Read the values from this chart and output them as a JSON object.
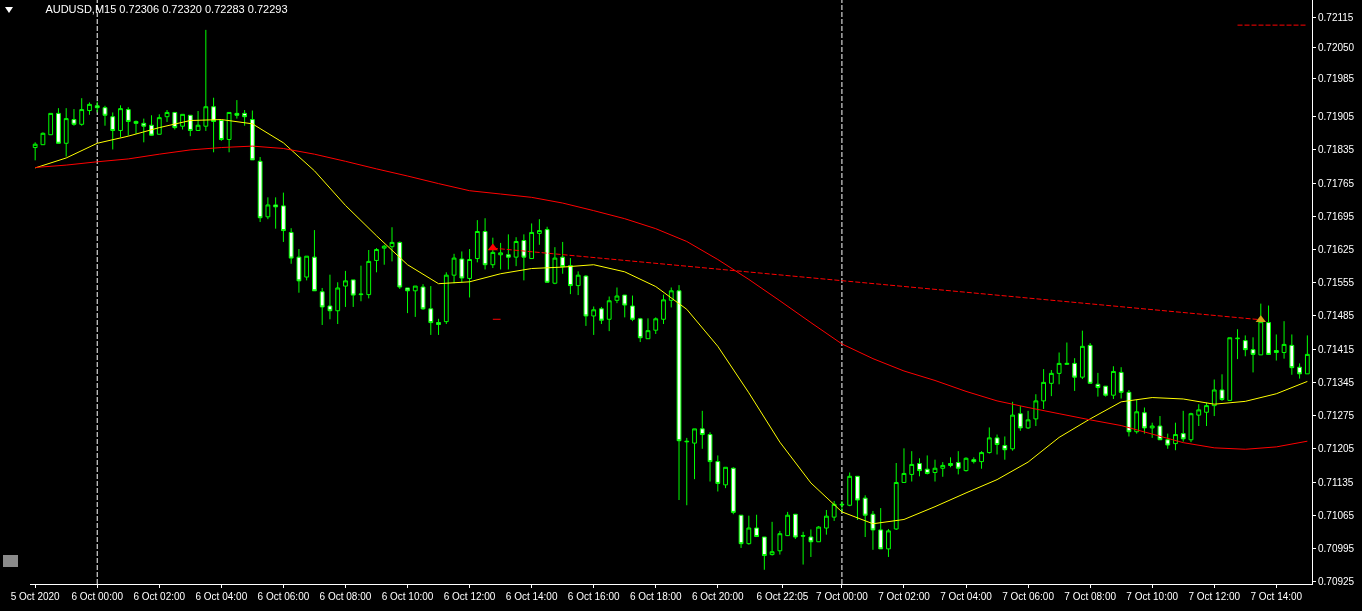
{
  "chart_data": {
    "type": "candlestick",
    "title": "AUDUSD,M15 0.72306 0.72320 0.72283 0.72293",
    "x": [
      "2020-10-05T22:00",
      "2020-10-05T22:15",
      "2020-10-05T22:30",
      "2020-10-05T22:45",
      "2020-10-05T23:00",
      "2020-10-05T23:15",
      "2020-10-05T23:30",
      "2020-10-05T23:45",
      "2020-10-06T00:00",
      "2020-10-06T00:15",
      "2020-10-06T00:30",
      "2020-10-06T00:45",
      "2020-10-06T01:00",
      "2020-10-06T01:15",
      "2020-10-06T01:30",
      "2020-10-06T01:45",
      "2020-10-06T02:00",
      "2020-10-06T02:15",
      "2020-10-06T02:30",
      "2020-10-06T02:45",
      "2020-10-06T03:00",
      "2020-10-06T03:15",
      "2020-10-06T03:30",
      "2020-10-06T03:45",
      "2020-10-06T04:00",
      "2020-10-06T04:15",
      "2020-10-06T04:30",
      "2020-10-06T04:45",
      "2020-10-06T05:00",
      "2020-10-06T05:15",
      "2020-10-06T05:30",
      "2020-10-06T05:45",
      "2020-10-06T06:00",
      "2020-10-06T06:15",
      "2020-10-06T06:30",
      "2020-10-06T06:45",
      "2020-10-06T07:00",
      "2020-10-06T07:15",
      "2020-10-06T07:30",
      "2020-10-06T07:45",
      "2020-10-06T08:00",
      "2020-10-06T08:15",
      "2020-10-06T08:30",
      "2020-10-06T08:45",
      "2020-10-06T09:00",
      "2020-10-06T09:15",
      "2020-10-06T09:30",
      "2020-10-06T09:45",
      "2020-10-06T10:00",
      "2020-10-06T10:15",
      "2020-10-06T10:30",
      "2020-10-06T10:45",
      "2020-10-06T11:00",
      "2020-10-06T11:15",
      "2020-10-06T11:30",
      "2020-10-06T11:45",
      "2020-10-06T12:00",
      "2020-10-06T12:15",
      "2020-10-06T12:30",
      "2020-10-06T12:45",
      "2020-10-06T13:00",
      "2020-10-06T13:15",
      "2020-10-06T13:30",
      "2020-10-06T13:45",
      "2020-10-06T14:00",
      "2020-10-06T14:15",
      "2020-10-06T14:30",
      "2020-10-06T14:45",
      "2020-10-06T15:00",
      "2020-10-06T15:15",
      "2020-10-06T15:30",
      "2020-10-06T15:45",
      "2020-10-06T16:00",
      "2020-10-06T16:15",
      "2020-10-06T16:30",
      "2020-10-06T16:45",
      "2020-10-06T17:00",
      "2020-10-06T17:15",
      "2020-10-06T17:30",
      "2020-10-06T17:45",
      "2020-10-06T18:00",
      "2020-10-06T18:15",
      "2020-10-06T18:30",
      "2020-10-06T18:45",
      "2020-10-06T19:00",
      "2020-10-06T19:15",
      "2020-10-06T19:30",
      "2020-10-06T19:45",
      "2020-10-06T20:00",
      "2020-10-06T20:15",
      "2020-10-06T20:30",
      "2020-10-06T20:45",
      "2020-10-06T21:00",
      "2020-10-06T21:15",
      "2020-10-06T21:30",
      "2020-10-06T21:45",
      "2020-10-06T22:00",
      "2020-10-06T22:15",
      "2020-10-06T22:30",
      "2020-10-06T22:45",
      "2020-10-06T23:00",
      "2020-10-06T23:15",
      "2020-10-06T23:30",
      "2020-10-06T23:45",
      "2020-10-07T00:00",
      "2020-10-07T00:15",
      "2020-10-07T00:30",
      "2020-10-07T00:45",
      "2020-10-07T01:00",
      "2020-10-07T01:15",
      "2020-10-07T01:30",
      "2020-10-07T01:45",
      "2020-10-07T02:00",
      "2020-10-07T02:15",
      "2020-10-07T02:30",
      "2020-10-07T02:45",
      "2020-10-07T03:00",
      "2020-10-07T03:15",
      "2020-10-07T03:30",
      "2020-10-07T03:45",
      "2020-10-07T04:00",
      "2020-10-07T04:15",
      "2020-10-07T04:30",
      "2020-10-07T04:45",
      "2020-10-07T05:00",
      "2020-10-07T05:15",
      "2020-10-07T05:30",
      "2020-10-07T05:45",
      "2020-10-07T06:00",
      "2020-10-07T06:15",
      "2020-10-07T06:30",
      "2020-10-07T06:45",
      "2020-10-07T07:00",
      "2020-10-07T07:15",
      "2020-10-07T07:30",
      "2020-10-07T07:45",
      "2020-10-07T08:00",
      "2020-10-07T08:15",
      "2020-10-07T08:30",
      "2020-10-07T08:45",
      "2020-10-07T09:00",
      "2020-10-07T09:15",
      "2020-10-07T09:30",
      "2020-10-07T09:45",
      "2020-10-07T10:00",
      "2020-10-07T10:15",
      "2020-10-07T10:30",
      "2020-10-07T10:45",
      "2020-10-07T11:00",
      "2020-10-07T11:15",
      "2020-10-07T11:30",
      "2020-10-07T11:45",
      "2020-10-07T12:00",
      "2020-10-07T12:15",
      "2020-10-07T12:30",
      "2020-10-07T12:45",
      "2020-10-07T13:00",
      "2020-10-07T13:15",
      "2020-10-07T13:30",
      "2020-10-07T13:45",
      "2020-10-07T14:00",
      "2020-10-07T14:15",
      "2020-10-07T14:30",
      "2020-10-07T14:45",
      "2020-10-07T15:00"
    ],
    "ohlc": [
      [
        0.7184,
        0.71851,
        0.71813,
        0.71847
      ],
      [
        0.71846,
        0.71872,
        0.71846,
        0.7187
      ],
      [
        0.71867,
        0.71912,
        0.71867,
        0.71912
      ],
      [
        0.71912,
        0.71923,
        0.71849,
        0.71849
      ],
      [
        0.71849,
        0.71923,
        0.71821,
        0.71901
      ],
      [
        0.71899,
        0.71921,
        0.71886,
        0.71889
      ],
      [
        0.71889,
        0.71944,
        0.71886,
        0.7192
      ],
      [
        0.71918,
        0.71935,
        0.71909,
        0.71931
      ],
      [
        0.71928,
        0.71937,
        0.71914,
        0.71924
      ],
      [
        0.71924,
        0.71928,
        0.71886,
        0.71908
      ],
      [
        0.71905,
        0.71914,
        0.71836,
        0.71876
      ],
      [
        0.71876,
        0.71929,
        0.71862,
        0.71922
      ],
      [
        0.7192,
        0.71925,
        0.71865,
        0.71895
      ],
      [
        0.71895,
        0.71897,
        0.71869,
        0.71891
      ],
      [
        0.71891,
        0.71901,
        0.71851,
        0.71885
      ],
      [
        0.71887,
        0.71908,
        0.71865,
        0.71866
      ],
      [
        0.71868,
        0.7191,
        0.71868,
        0.71903
      ],
      [
        0.71905,
        0.71919,
        0.71894,
        0.71914
      ],
      [
        0.71914,
        0.71914,
        0.71878,
        0.71882
      ],
      [
        0.71885,
        0.7191,
        0.71878,
        0.7191
      ],
      [
        0.71908,
        0.71908,
        0.71864,
        0.71876
      ],
      [
        0.71876,
        0.71917,
        0.71876,
        0.71887
      ],
      [
        0.71885,
        0.72088,
        0.71875,
        0.71926
      ],
      [
        0.71926,
        0.71945,
        0.7183,
        0.71895
      ],
      [
        0.71897,
        0.71897,
        0.71854,
        0.71857
      ],
      [
        0.71857,
        0.71914,
        0.7183,
        0.71914
      ],
      [
        0.71912,
        0.7194,
        0.71901,
        0.71908
      ],
      [
        0.71912,
        0.71919,
        0.71886,
        0.71905
      ],
      [
        0.71899,
        0.71918,
        0.71814,
        0.71814
      ],
      [
        0.71811,
        0.7182,
        0.71683,
        0.71692
      ],
      [
        0.71694,
        0.71735,
        0.71689,
        0.71719
      ],
      [
        0.71719,
        0.71735,
        0.71669,
        0.71715
      ],
      [
        0.71717,
        0.71745,
        0.71641,
        0.71665
      ],
      [
        0.71661,
        0.7167,
        0.71595,
        0.71607
      ],
      [
        0.71609,
        0.71626,
        0.71534,
        0.71559
      ],
      [
        0.71567,
        0.71611,
        0.7156,
        0.71611
      ],
      [
        0.71609,
        0.71666,
        0.71538,
        0.71538
      ],
      [
        0.71536,
        0.71544,
        0.71466,
        0.71504
      ],
      [
        0.71506,
        0.71572,
        0.71478,
        0.71496
      ],
      [
        0.71496,
        0.71556,
        0.71468,
        0.71544
      ],
      [
        0.71548,
        0.7158,
        0.71504,
        0.71559
      ],
      [
        0.71561,
        0.71561,
        0.71504,
        0.71529
      ],
      [
        0.7153,
        0.71591,
        0.71516,
        0.71531
      ],
      [
        0.7153,
        0.71624,
        0.71522,
        0.716
      ],
      [
        0.71602,
        0.71628,
        0.71577,
        0.71625
      ],
      [
        0.71628,
        0.71635,
        0.71593,
        0.71632
      ],
      [
        0.71631,
        0.71672,
        0.716,
        0.7164
      ],
      [
        0.7164,
        0.71642,
        0.71542,
        0.71546
      ],
      [
        0.71544,
        0.71544,
        0.71491,
        0.71538
      ],
      [
        0.71538,
        0.71548,
        0.71483,
        0.71548
      ],
      [
        0.71546,
        0.71552,
        0.71498,
        0.715
      ],
      [
        0.715,
        0.71548,
        0.71445,
        0.71471
      ],
      [
        0.71471,
        0.71479,
        0.71445,
        0.71467
      ],
      [
        0.71473,
        0.71577,
        0.71468,
        0.71571
      ],
      [
        0.71571,
        0.71616,
        0.71554,
        0.71607
      ],
      [
        0.71605,
        0.71621,
        0.71556,
        0.71565
      ],
      [
        0.71564,
        0.71626,
        0.71524,
        0.71604
      ],
      [
        0.71606,
        0.71687,
        0.71598,
        0.71663
      ],
      [
        0.71663,
        0.71691,
        0.71583,
        0.71593
      ],
      [
        0.71593,
        0.7165,
        0.71586,
        0.71619
      ],
      [
        0.71614,
        0.71639,
        0.71583,
        0.71618
      ],
      [
        0.71614,
        0.71657,
        0.71583,
        0.71609
      ],
      [
        0.71609,
        0.71651,
        0.7159,
        0.71642
      ],
      [
        0.71644,
        0.71657,
        0.7156,
        0.71609
      ],
      [
        0.71606,
        0.7168,
        0.71606,
        0.71661
      ],
      [
        0.71659,
        0.71689,
        0.71635,
        0.71665
      ],
      [
        0.71667,
        0.71673,
        0.71556,
        0.71556
      ],
      [
        0.71554,
        0.7163,
        0.71552,
        0.71607
      ],
      [
        0.71609,
        0.71641,
        0.71574,
        0.71589
      ],
      [
        0.71591,
        0.71607,
        0.71531,
        0.71549
      ],
      [
        0.71549,
        0.71579,
        0.71529,
        0.71571
      ],
      [
        0.71569,
        0.71571,
        0.71464,
        0.71485
      ],
      [
        0.71485,
        0.71505,
        0.71445,
        0.71498
      ],
      [
        0.715,
        0.71504,
        0.71468,
        0.71476
      ],
      [
        0.71478,
        0.71526,
        0.71453,
        0.71517
      ],
      [
        0.71518,
        0.71545,
        0.71512,
        0.71527
      ],
      [
        0.71529,
        0.71529,
        0.71482,
        0.71508
      ],
      [
        0.71506,
        0.71528,
        0.71474,
        0.71478
      ],
      [
        0.71479,
        0.71481,
        0.7143,
        0.71439
      ],
      [
        0.71437,
        0.7148,
        0.71437,
        0.71454
      ],
      [
        0.71455,
        0.71482,
        0.71447,
        0.71479
      ],
      [
        0.71478,
        0.7153,
        0.71468,
        0.71519
      ],
      [
        0.71518,
        0.71545,
        0.71503,
        0.71538
      ],
      [
        0.71538,
        0.7155,
        0.71097,
        0.71222
      ],
      [
        0.71221,
        0.71228,
        0.71086,
        0.7122
      ],
      [
        0.71217,
        0.71247,
        0.71141,
        0.71247
      ],
      [
        0.71247,
        0.71285,
        0.71205,
        0.71235
      ],
      [
        0.71235,
        0.7124,
        0.71136,
        0.71178
      ],
      [
        0.71178,
        0.71191,
        0.71115,
        0.71132
      ],
      [
        0.71129,
        0.71166,
        0.71122,
        0.71166
      ],
      [
        0.71164,
        0.71166,
        0.71067,
        0.71071
      ],
      [
        0.71065,
        0.71065,
        0.70996,
        0.71005
      ],
      [
        0.71005,
        0.71064,
        0.71003,
        0.71038
      ],
      [
        0.71038,
        0.71066,
        0.7102,
        0.7102
      ],
      [
        0.71019,
        0.71019,
        0.7095,
        0.7098
      ],
      [
        0.70982,
        0.71051,
        0.7098,
        0.70988
      ],
      [
        0.7099,
        0.71032,
        0.70982,
        0.71026
      ],
      [
        0.71022,
        0.71072,
        0.71021,
        0.71065
      ],
      [
        0.71067,
        0.71067,
        0.71015,
        0.71019
      ],
      [
        0.71022,
        0.7103,
        0.70961,
        0.71021
      ],
      [
        0.71019,
        0.71035,
        0.70977,
        0.71009
      ],
      [
        0.71009,
        0.71042,
        0.71009,
        0.7104
      ],
      [
        0.71038,
        0.71076,
        0.71024,
        0.71063
      ],
      [
        0.71061,
        0.71095,
        0.71053,
        0.71088
      ],
      [
        0.71088,
        0.71095,
        0.71071,
        0.71087
      ],
      [
        0.71086,
        0.71155,
        0.71084,
        0.71147
      ],
      [
        0.71147,
        0.71147,
        0.71055,
        0.71097
      ],
      [
        0.71101,
        0.71107,
        0.71019,
        0.71065
      ],
      [
        0.71067,
        0.71074,
        0.70992,
        0.71034
      ],
      [
        0.71034,
        0.7108,
        0.70994,
        0.70994
      ],
      [
        0.70994,
        0.71036,
        0.70977,
        0.71032
      ],
      [
        0.71036,
        0.71175,
        0.71034,
        0.71134
      ],
      [
        0.71134,
        0.71206,
        0.71134,
        0.71153
      ],
      [
        0.71151,
        0.712,
        0.71136,
        0.71172
      ],
      [
        0.71174,
        0.71185,
        0.71147,
        0.71159
      ],
      [
        0.71162,
        0.71191,
        0.71151,
        0.71153
      ],
      [
        0.71155,
        0.71182,
        0.71136,
        0.71164
      ],
      [
        0.71164,
        0.71177,
        0.71146,
        0.7117
      ],
      [
        0.71174,
        0.71187,
        0.71166,
        0.7117
      ],
      [
        0.71176,
        0.712,
        0.71151,
        0.71164
      ],
      [
        0.71159,
        0.71187,
        0.71157,
        0.71185
      ],
      [
        0.71182,
        0.71187,
        0.71174,
        0.71178
      ],
      [
        0.71178,
        0.712,
        0.71163,
        0.71197
      ],
      [
        0.71197,
        0.7125,
        0.71195,
        0.71228
      ],
      [
        0.71228,
        0.71235,
        0.71193,
        0.71214
      ],
      [
        0.71212,
        0.71231,
        0.71182,
        0.71203
      ],
      [
        0.71205,
        0.71304,
        0.71201,
        0.71276
      ],
      [
        0.71279,
        0.71295,
        0.71243,
        0.71249
      ],
      [
        0.71249,
        0.71285,
        0.71247,
        0.71266
      ],
      [
        0.71268,
        0.7132,
        0.71253,
        0.71306
      ],
      [
        0.71306,
        0.71373,
        0.71289,
        0.71345
      ],
      [
        0.71343,
        0.71371,
        0.71316,
        0.71364
      ],
      [
        0.71364,
        0.71408,
        0.71341,
        0.71385
      ],
      [
        0.71383,
        0.71429,
        0.71382,
        0.71385
      ],
      [
        0.71385,
        0.71396,
        0.71327,
        0.71356
      ],
      [
        0.71356,
        0.71454,
        0.71352,
        0.71421
      ],
      [
        0.71423,
        0.71428,
        0.71343,
        0.71343
      ],
      [
        0.71341,
        0.71365,
        0.71315,
        0.71334
      ],
      [
        0.71337,
        0.71337,
        0.71315,
        0.71318
      ],
      [
        0.71318,
        0.71379,
        0.7131,
        0.71368
      ],
      [
        0.71366,
        0.71377,
        0.71311,
        0.71324
      ],
      [
        0.71324,
        0.71329,
        0.71231,
        0.71241
      ],
      [
        0.71241,
        0.71308,
        0.71237,
        0.71283
      ],
      [
        0.71281,
        0.71292,
        0.71237,
        0.71249
      ],
      [
        0.71249,
        0.7126,
        0.71228,
        0.71253
      ],
      [
        0.71253,
        0.71274,
        0.71224,
        0.71224
      ],
      [
        0.71224,
        0.71237,
        0.71205,
        0.71213
      ],
      [
        0.71216,
        0.7126,
        0.71202,
        0.71235
      ],
      [
        0.71237,
        0.71285,
        0.7122,
        0.71226
      ],
      [
        0.71224,
        0.71281,
        0.71219,
        0.71279
      ],
      [
        0.71276,
        0.71299,
        0.71253,
        0.71287
      ],
      [
        0.71282,
        0.71302,
        0.71253,
        0.71296
      ],
      [
        0.71296,
        0.71351,
        0.71274,
        0.71329
      ],
      [
        0.71329,
        0.71362,
        0.71306,
        0.71309
      ],
      [
        0.71307,
        0.71439,
        0.71307,
        0.71439
      ],
      [
        0.71437,
        0.71457,
        0.71394,
        0.71438
      ],
      [
        0.71433,
        0.71444,
        0.714,
        0.71414
      ],
      [
        0.71414,
        0.7144,
        0.71366,
        0.71404
      ],
      [
        0.71403,
        0.71511,
        0.71403,
        0.71473
      ],
      [
        0.71471,
        0.71507,
        0.71404,
        0.71404
      ],
      [
        0.71412,
        0.71446,
        0.71391,
        0.71408
      ],
      [
        0.71408,
        0.71474,
        0.71395,
        0.71425
      ],
      [
        0.71423,
        0.71446,
        0.71361,
        0.71376
      ],
      [
        0.71377,
        0.71385,
        0.71353,
        0.71363
      ],
      [
        0.71363,
        0.71444,
        0.71363,
        0.71404
      ]
    ],
    "series": [
      {
        "type": "line",
        "color": "#ffff00",
        "x": [
          "2020-10-05T22:00",
          "2020-10-05T23:00",
          "2020-10-06T00:00",
          "2020-10-06T01:00",
          "2020-10-06T02:00",
          "2020-10-06T03:00",
          "2020-10-06T04:00",
          "2020-10-06T05:00",
          "2020-10-06T06:00",
          "2020-10-06T07:00",
          "2020-10-06T08:00",
          "2020-10-06T09:00",
          "2020-10-06T10:00",
          "2020-10-06T11:00",
          "2020-10-06T12:00",
          "2020-10-06T13:00",
          "2020-10-06T14:00",
          "2020-10-06T15:00",
          "2020-10-06T16:00",
          "2020-10-06T17:00",
          "2020-10-06T18:00",
          "2020-10-06T19:00",
          "2020-10-06T20:00",
          "2020-10-06T21:00",
          "2020-10-06T22:00",
          "2020-10-06T23:00",
          "2020-10-07T00:00",
          "2020-10-07T01:00",
          "2020-10-07T02:00",
          "2020-10-07T03:00",
          "2020-10-07T04:00",
          "2020-10-07T05:00",
          "2020-10-07T06:00",
          "2020-10-07T07:00",
          "2020-10-07T08:00",
          "2020-10-07T09:00",
          "2020-10-07T10:00",
          "2020-10-07T11:00",
          "2020-10-07T12:00",
          "2020-10-07T13:00",
          "2020-10-07T14:00",
          "2020-10-07T15:00"
        ],
        "values": [
          0.71797,
          0.71818,
          0.71849,
          0.71864,
          0.71882,
          0.71897,
          0.71899,
          0.7189,
          0.7185,
          0.71791,
          0.71718,
          0.71654,
          0.71593,
          0.71553,
          0.71557,
          0.71574,
          0.71585,
          0.71588,
          0.71593,
          0.71578,
          0.71547,
          0.71499,
          0.71421,
          0.71323,
          0.71219,
          0.71133,
          0.71072,
          0.71047,
          0.71056,
          0.71083,
          0.71112,
          0.7114,
          0.71177,
          0.71229,
          0.71268,
          0.71304,
          0.71313,
          0.7131,
          0.71299,
          0.71305,
          0.71321,
          0.71347
        ]
      },
      {
        "type": "line",
        "color": "#ff0000",
        "x": [
          "2020-10-05T22:00",
          "2020-10-05T23:00",
          "2020-10-06T00:00",
          "2020-10-06T01:00",
          "2020-10-06T02:00",
          "2020-10-06T03:00",
          "2020-10-06T04:00",
          "2020-10-06T05:00",
          "2020-10-06T06:00",
          "2020-10-06T07:00",
          "2020-10-06T08:00",
          "2020-10-06T09:00",
          "2020-10-06T10:00",
          "2020-10-06T11:00",
          "2020-10-06T12:00",
          "2020-10-06T13:00",
          "2020-10-06T14:00",
          "2020-10-06T15:00",
          "2020-10-06T16:00",
          "2020-10-06T17:00",
          "2020-10-06T18:00",
          "2020-10-06T19:00",
          "2020-10-06T20:00",
          "2020-10-06T21:00",
          "2020-10-06T22:00",
          "2020-10-06T23:00",
          "2020-10-07T00:00",
          "2020-10-07T01:00",
          "2020-10-07T02:00",
          "2020-10-07T03:00",
          "2020-10-07T04:00",
          "2020-10-07T05:00",
          "2020-10-07T06:00",
          "2020-10-07T07:00",
          "2020-10-07T08:00",
          "2020-10-07T09:00",
          "2020-10-07T10:00",
          "2020-10-07T11:00",
          "2020-10-07T12:00",
          "2020-10-07T13:00",
          "2020-10-07T14:00",
          "2020-10-07T15:00"
        ],
        "values": [
          0.71798,
          0.71803,
          0.7181,
          0.71816,
          0.71826,
          0.71835,
          0.7184,
          0.71843,
          0.71838,
          0.71826,
          0.71811,
          0.71795,
          0.7178,
          0.71764,
          0.71749,
          0.71742,
          0.71735,
          0.71723,
          0.71707,
          0.7169,
          0.71669,
          0.71642,
          0.71604,
          0.71562,
          0.71517,
          0.71471,
          0.71426,
          0.71395,
          0.71369,
          0.71349,
          0.71326,
          0.71306,
          0.71292,
          0.71279,
          0.71266,
          0.71254,
          0.71236,
          0.71218,
          0.71207,
          0.71204,
          0.71209,
          0.71221
        ]
      },
      {
        "type": "line",
        "color": "#ff0000",
        "line_style": "dashed",
        "x": [
          "2020-10-06T12:45",
          "2020-10-07T13:30"
        ],
        "values": [
          0.71628,
          0.71477
        ]
      },
      {
        "type": "line",
        "color": "#ff0000",
        "line_style": "dashed",
        "x": [
          "2020-10-07T12:45",
          "2020-10-07T15:00"
        ],
        "values": [
          0.72098,
          0.72098
        ]
      },
      {
        "type": "line",
        "color": "#ff0000",
        "x": [
          "2020-10-06T12:45",
          "2020-10-06T13:00"
        ],
        "values": [
          0.71478,
          0.71478
        ]
      },
      {
        "type": "scatter",
        "color": "#ff0000",
        "marker": "triangle",
        "x": [
          "2020-10-06T12:45"
        ],
        "values": [
          0.71628
        ]
      },
      {
        "type": "scatter",
        "color": "#d4a017",
        "marker": "triangle",
        "x": [
          "2020-10-07T13:30"
        ],
        "values": [
          0.71477
        ]
      }
    ],
    "xlim": [
      "2020-10-05T21:50",
      "2020-10-07T15:09"
    ],
    "xticks": [
      {
        "value": "2020-10-05T22:00",
        "label": "5 Oct 2020"
      },
      {
        "value": "2020-10-06T00:00",
        "label": "6 Oct 00:00"
      },
      {
        "value": "2020-10-06T02:00",
        "label": "6 Oct 02:00"
      },
      {
        "value": "2020-10-06T04:00",
        "label": "6 Oct 04:00"
      },
      {
        "value": "2020-10-06T06:00",
        "label": "6 Oct 06:00"
      },
      {
        "value": "2020-10-06T08:00",
        "label": "6 Oct 08:00"
      },
      {
        "value": "2020-10-06T10:00",
        "label": "6 Oct 10:00"
      },
      {
        "value": "2020-10-06T12:00",
        "label": "6 Oct 12:00"
      },
      {
        "value": "2020-10-06T14:00",
        "label": "6 Oct 14:00"
      },
      {
        "value": "2020-10-06T16:00",
        "label": "6 Oct 16:00"
      },
      {
        "value": "2020-10-06T18:00",
        "label": "6 Oct 18:00"
      },
      {
        "value": "2020-10-06T20:00",
        "label": "6 Oct 20:00"
      },
      {
        "value": "2020-10-06T22:05",
        "label": "6 Oct 22:05"
      },
      {
        "value": "2020-10-07T00:00",
        "label": "7 Oct 00:00"
      },
      {
        "value": "2020-10-07T02:00",
        "label": "7 Oct 02:00"
      },
      {
        "value": "2020-10-07T04:00",
        "label": "7 Oct 04:00"
      },
      {
        "value": "2020-10-07T06:00",
        "label": "7 Oct 06:00"
      },
      {
        "value": "2020-10-07T08:00",
        "label": "7 Oct 08:00"
      },
      {
        "value": "2020-10-07T10:00",
        "label": "7 Oct 10:00"
      },
      {
        "value": "2020-10-07T12:00",
        "label": "7 Oct 12:00"
      },
      {
        "value": "2020-10-07T14:00",
        "label": "7 Oct 14:00"
      }
    ],
    "ylim": [
      0.7092,
      0.72151
    ],
    "yticks": [
      0.72115,
      {
        "value": 0.7205,
        "label": "0.72050"
      },
      0.71985,
      0.71905,
      0.71835,
      0.71765,
      0.71695,
      0.71625,
      0.71555,
      0.71485,
      0.71415,
      0.71345,
      0.71275,
      0.71205,
      0.71135,
      0.71065,
      0.70995,
      0.70925
    ],
    "ref_lines": [
      {
        "axis": "x",
        "value": "2020-10-06T00:00",
        "color": "#ffffff",
        "line_style": "dashed"
      },
      {
        "axis": "x",
        "value": "2020-10-07T00:00",
        "color": "#ffffff",
        "line_style": "dashed"
      }
    ]
  }
}
